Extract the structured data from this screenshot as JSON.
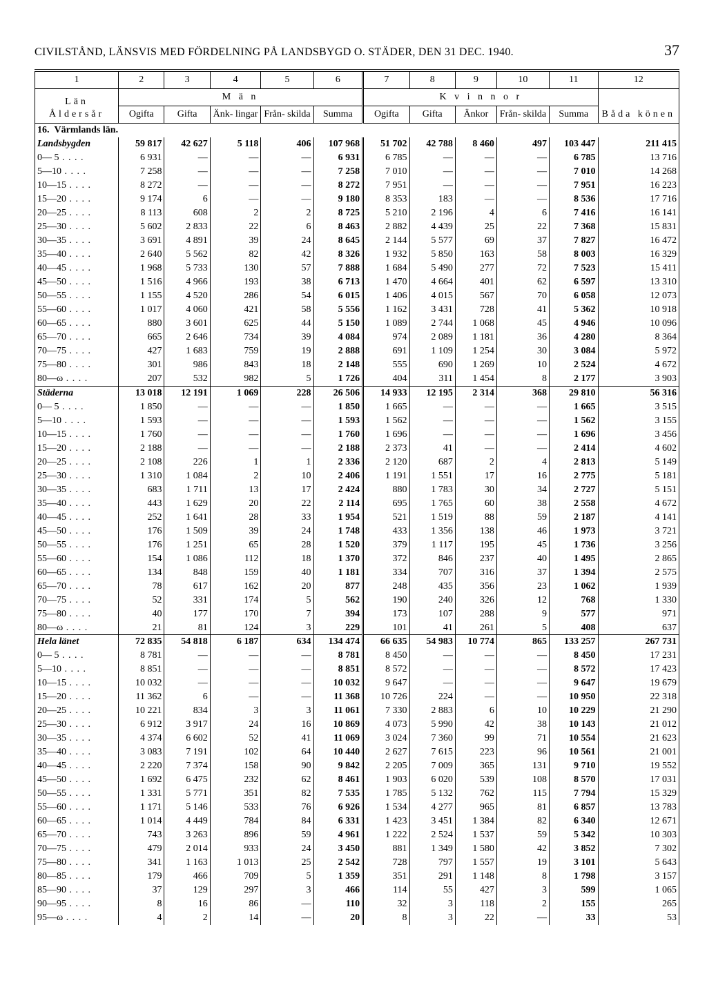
{
  "page_header": "CIVILSTÅND, LÄNSVIS MED FÖRDELNING PÅ LANDSBYGD O. STÄDER, DEN 31 DEC. 1940.",
  "page_number": "37",
  "col_numbers": [
    "1",
    "2",
    "3",
    "4",
    "5",
    "6",
    "7",
    "8",
    "9",
    "10",
    "11",
    "12"
  ],
  "header": {
    "lan": "Län",
    "aldersar": "Åldersår",
    "man": "M ä n",
    "kvinnor": "K v i n n o r",
    "bada_konen": "Båda könen",
    "ogifta": "Ogifta",
    "gifta": "Gifta",
    "anklingar": "Änk- lingar",
    "franskilda": "Från- skilda",
    "summa": "Summa",
    "ankor": "Änkor"
  },
  "region_title_num": "16.",
  "region_title": "Värmlands län.",
  "sections": [
    {
      "title": "Landsbygden",
      "totals": [
        "59 817",
        "42 627",
        "5 118",
        "406",
        "107 968",
        "51 702",
        "42 788",
        "8 460",
        "497",
        "103 447",
        "211 415"
      ],
      "rows": [
        {
          "l": "0— 5",
          "v": [
            "6 931",
            "—",
            "—",
            "—",
            "6 931",
            "6 785",
            "—",
            "—",
            "—",
            "6 785",
            "13 716"
          ]
        },
        {
          "l": "5—10",
          "v": [
            "7 258",
            "—",
            "—",
            "—",
            "7 258",
            "7 010",
            "—",
            "—",
            "—",
            "7 010",
            "14 268"
          ]
        },
        {
          "l": "10—15",
          "v": [
            "8 272",
            "—",
            "—",
            "—",
            "8 272",
            "7 951",
            "—",
            "—",
            "—",
            "7 951",
            "16 223"
          ]
        },
        {
          "l": "15—20",
          "v": [
            "9 174",
            "6",
            "—",
            "—",
            "9 180",
            "8 353",
            "183",
            "—",
            "—",
            "8 536",
            "17 716"
          ]
        },
        {
          "l": "20—25",
          "v": [
            "8 113",
            "608",
            "2",
            "2",
            "8 725",
            "5 210",
            "2 196",
            "4",
            "6",
            "7 416",
            "16 141"
          ]
        },
        {
          "l": "25—30",
          "v": [
            "5 602",
            "2 833",
            "22",
            "6",
            "8 463",
            "2 882",
            "4 439",
            "25",
            "22",
            "7 368",
            "15 831"
          ]
        },
        {
          "l": "30—35",
          "v": [
            "3 691",
            "4 891",
            "39",
            "24",
            "8 645",
            "2 144",
            "5 577",
            "69",
            "37",
            "7 827",
            "16 472"
          ]
        },
        {
          "l": "35—40",
          "v": [
            "2 640",
            "5 562",
            "82",
            "42",
            "8 326",
            "1 932",
            "5 850",
            "163",
            "58",
            "8 003",
            "16 329"
          ]
        },
        {
          "l": "40—45",
          "v": [
            "1 968",
            "5 733",
            "130",
            "57",
            "7 888",
            "1 684",
            "5 490",
            "277",
            "72",
            "7 523",
            "15 411"
          ]
        },
        {
          "l": "45—50",
          "v": [
            "1 516",
            "4 966",
            "193",
            "38",
            "6 713",
            "1 470",
            "4 664",
            "401",
            "62",
            "6 597",
            "13 310"
          ]
        },
        {
          "l": "50—55",
          "v": [
            "1 155",
            "4 520",
            "286",
            "54",
            "6 015",
            "1 406",
            "4 015",
            "567",
            "70",
            "6 058",
            "12 073"
          ]
        },
        {
          "l": "55—60",
          "v": [
            "1 017",
            "4 060",
            "421",
            "58",
            "5 556",
            "1 162",
            "3 431",
            "728",
            "41",
            "5 362",
            "10 918"
          ]
        },
        {
          "l": "60—65",
          "v": [
            "880",
            "3 601",
            "625",
            "44",
            "5 150",
            "1 089",
            "2 744",
            "1 068",
            "45",
            "4 946",
            "10 096"
          ]
        },
        {
          "l": "65—70",
          "v": [
            "665",
            "2 646",
            "734",
            "39",
            "4 084",
            "974",
            "2 089",
            "1 181",
            "36",
            "4 280",
            "8 364"
          ]
        },
        {
          "l": "70—75",
          "v": [
            "427",
            "1 683",
            "759",
            "19",
            "2 888",
            "691",
            "1 109",
            "1 254",
            "30",
            "3 084",
            "5 972"
          ]
        },
        {
          "l": "75—80",
          "v": [
            "301",
            "986",
            "843",
            "18",
            "2 148",
            "555",
            "690",
            "1 269",
            "10",
            "2 524",
            "4 672"
          ]
        },
        {
          "l": "80—ω",
          "v": [
            "207",
            "532",
            "982",
            "5",
            "1 726",
            "404",
            "311",
            "1 454",
            "8",
            "2 177",
            "3 903"
          ]
        }
      ]
    },
    {
      "title": "Städerna",
      "totals": [
        "13 018",
        "12 191",
        "1 069",
        "228",
        "26 506",
        "14 933",
        "12 195",
        "2 314",
        "368",
        "29 810",
        "56 316"
      ],
      "rows": [
        {
          "l": "0— 5",
          "v": [
            "1 850",
            "—",
            "—",
            "—",
            "1 850",
            "1 665",
            "—",
            "—",
            "—",
            "1 665",
            "3 515"
          ]
        },
        {
          "l": "5—10",
          "v": [
            "1 593",
            "—",
            "—",
            "—",
            "1 593",
            "1 562",
            "—",
            "—",
            "—",
            "1 562",
            "3 155"
          ]
        },
        {
          "l": "10—15",
          "v": [
            "1 760",
            "—",
            "—",
            "—",
            "1 760",
            "1 696",
            "—",
            "—",
            "—",
            "1 696",
            "3 456"
          ]
        },
        {
          "l": "15—20",
          "v": [
            "2 188",
            "—",
            "—",
            "—",
            "2 188",
            "2 373",
            "41",
            "—",
            "—",
            "2 414",
            "4 602"
          ]
        },
        {
          "l": "20—25",
          "v": [
            "2 108",
            "226",
            "1",
            "1",
            "2 336",
            "2 120",
            "687",
            "2",
            "4",
            "2 813",
            "5 149"
          ]
        },
        {
          "l": "25—30",
          "v": [
            "1 310",
            "1 084",
            "2",
            "10",
            "2 406",
            "1 191",
            "1 551",
            "17",
            "16",
            "2 775",
            "5 181"
          ]
        },
        {
          "l": "30—35",
          "v": [
            "683",
            "1 711",
            "13",
            "17",
            "2 424",
            "880",
            "1 783",
            "30",
            "34",
            "2 727",
            "5 151"
          ]
        },
        {
          "l": "35—40",
          "v": [
            "443",
            "1 629",
            "20",
            "22",
            "2 114",
            "695",
            "1 765",
            "60",
            "38",
            "2 558",
            "4 672"
          ]
        },
        {
          "l": "40—45",
          "v": [
            "252",
            "1 641",
            "28",
            "33",
            "1 954",
            "521",
            "1 519",
            "88",
            "59",
            "2 187",
            "4 141"
          ]
        },
        {
          "l": "45—50",
          "v": [
            "176",
            "1 509",
            "39",
            "24",
            "1 748",
            "433",
            "1 356",
            "138",
            "46",
            "1 973",
            "3 721"
          ]
        },
        {
          "l": "50—55",
          "v": [
            "176",
            "1 251",
            "65",
            "28",
            "1 520",
            "379",
            "1 117",
            "195",
            "45",
            "1 736",
            "3 256"
          ]
        },
        {
          "l": "55—60",
          "v": [
            "154",
            "1 086",
            "112",
            "18",
            "1 370",
            "372",
            "846",
            "237",
            "40",
            "1 495",
            "2 865"
          ]
        },
        {
          "l": "60—65",
          "v": [
            "134",
            "848",
            "159",
            "40",
            "1 181",
            "334",
            "707",
            "316",
            "37",
            "1 394",
            "2 575"
          ]
        },
        {
          "l": "65—70",
          "v": [
            "78",
            "617",
            "162",
            "20",
            "877",
            "248",
            "435",
            "356",
            "23",
            "1 062",
            "1 939"
          ]
        },
        {
          "l": "70—75",
          "v": [
            "52",
            "331",
            "174",
            "5",
            "562",
            "190",
            "240",
            "326",
            "12",
            "768",
            "1 330"
          ]
        },
        {
          "l": "75—80",
          "v": [
            "40",
            "177",
            "170",
            "7",
            "394",
            "173",
            "107",
            "288",
            "9",
            "577",
            "971"
          ]
        },
        {
          "l": "80—ω",
          "v": [
            "21",
            "81",
            "124",
            "3",
            "229",
            "101",
            "41",
            "261",
            "5",
            "408",
            "637"
          ]
        }
      ]
    },
    {
      "title": "Hela länet",
      "totals": [
        "72 835",
        "54 818",
        "6 187",
        "634",
        "134 474",
        "66 635",
        "54 983",
        "10 774",
        "865",
        "133 257",
        "267 731"
      ],
      "rows": [
        {
          "l": "0— 5",
          "v": [
            "8 781",
            "—",
            "—",
            "—",
            "8 781",
            "8 450",
            "—",
            "—",
            "—",
            "8 450",
            "17 231"
          ]
        },
        {
          "l": "5—10",
          "v": [
            "8 851",
            "—",
            "—",
            "—",
            "8 851",
            "8 572",
            "—",
            "—",
            "—",
            "8 572",
            "17 423"
          ]
        },
        {
          "l": "10—15",
          "v": [
            "10 032",
            "—",
            "—",
            "—",
            "10 032",
            "9 647",
            "—",
            "—",
            "—",
            "9 647",
            "19 679"
          ]
        },
        {
          "l": "15—20",
          "v": [
            "11 362",
            "6",
            "—",
            "—",
            "11 368",
            "10 726",
            "224",
            "—",
            "—",
            "10 950",
            "22 318"
          ]
        },
        {
          "l": "20—25",
          "v": [
            "10 221",
            "834",
            "3",
            "3",
            "11 061",
            "7 330",
            "2 883",
            "6",
            "10",
            "10 229",
            "21 290"
          ]
        },
        {
          "l": "25—30",
          "v": [
            "6 912",
            "3 917",
            "24",
            "16",
            "10 869",
            "4 073",
            "5 990",
            "42",
            "38",
            "10 143",
            "21 012"
          ]
        },
        {
          "l": "30—35",
          "v": [
            "4 374",
            "6 602",
            "52",
            "41",
            "11 069",
            "3 024",
            "7 360",
            "99",
            "71",
            "10 554",
            "21 623"
          ]
        },
        {
          "l": "35—40",
          "v": [
            "3 083",
            "7 191",
            "102",
            "64",
            "10 440",
            "2 627",
            "7 615",
            "223",
            "96",
            "10 561",
            "21 001"
          ]
        },
        {
          "l": "40—45",
          "v": [
            "2 220",
            "7 374",
            "158",
            "90",
            "9 842",
            "2 205",
            "7 009",
            "365",
            "131",
            "9 710",
            "19 552"
          ]
        },
        {
          "l": "45—50",
          "v": [
            "1 692",
            "6 475",
            "232",
            "62",
            "8 461",
            "1 903",
            "6 020",
            "539",
            "108",
            "8 570",
            "17 031"
          ]
        },
        {
          "l": "50—55",
          "v": [
            "1 331",
            "5 771",
            "351",
            "82",
            "7 535",
            "1 785",
            "5 132",
            "762",
            "115",
            "7 794",
            "15 329"
          ]
        },
        {
          "l": "55—60",
          "v": [
            "1 171",
            "5 146",
            "533",
            "76",
            "6 926",
            "1 534",
            "4 277",
            "965",
            "81",
            "6 857",
            "13 783"
          ]
        },
        {
          "l": "60—65",
          "v": [
            "1 014",
            "4 449",
            "784",
            "84",
            "6 331",
            "1 423",
            "3 451",
            "1 384",
            "82",
            "6 340",
            "12 671"
          ]
        },
        {
          "l": "65—70",
          "v": [
            "743",
            "3 263",
            "896",
            "59",
            "4 961",
            "1 222",
            "2 524",
            "1 537",
            "59",
            "5 342",
            "10 303"
          ]
        },
        {
          "l": "70—75",
          "v": [
            "479",
            "2 014",
            "933",
            "24",
            "3 450",
            "881",
            "1 349",
            "1 580",
            "42",
            "3 852",
            "7 302"
          ]
        },
        {
          "l": "75—80",
          "v": [
            "341",
            "1 163",
            "1 013",
            "25",
            "2 542",
            "728",
            "797",
            "1 557",
            "19",
            "3 101",
            "5 643"
          ]
        },
        {
          "l": "80—85",
          "v": [
            "179",
            "466",
            "709",
            "5",
            "1 359",
            "351",
            "291",
            "1 148",
            "8",
            "1 798",
            "3 157"
          ]
        },
        {
          "l": "85—90",
          "v": [
            "37",
            "129",
            "297",
            "3",
            "466",
            "114",
            "55",
            "427",
            "3",
            "599",
            "1 065"
          ]
        },
        {
          "l": "90—95",
          "v": [
            "8",
            "16",
            "86",
            "—",
            "110",
            "32",
            "3",
            "118",
            "2",
            "155",
            "265"
          ]
        },
        {
          "l": "95—ω",
          "v": [
            "4",
            "2",
            "14",
            "—",
            "20",
            "8",
            "3",
            "22",
            "—",
            "33",
            "53"
          ]
        }
      ]
    }
  ],
  "bold_cols": [
    4,
    9
  ]
}
